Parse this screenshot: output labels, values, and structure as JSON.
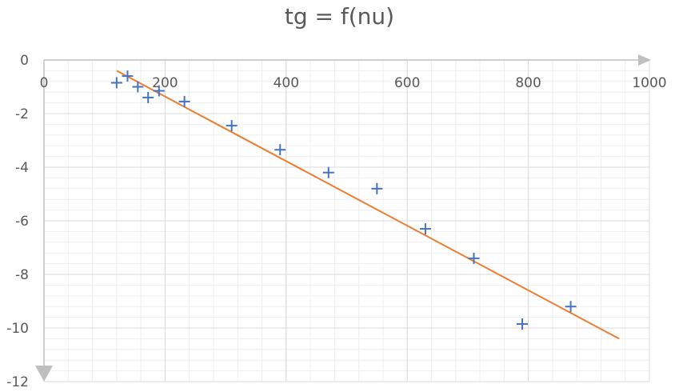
{
  "chart_data": {
    "type": "scatter",
    "title": "tg = f(nu)",
    "xlabel": "",
    "ylabel": "",
    "xlim": [
      0,
      1000
    ],
    "ylim": [
      -12,
      0
    ],
    "x_ticks": [
      "0",
      "200",
      "400",
      "600",
      "800",
      "1000"
    ],
    "y_ticks": [
      "0",
      "-2",
      "-4",
      "-6",
      "-8",
      "-10",
      "-12"
    ],
    "grid": true,
    "legend": "none",
    "series": [
      {
        "marker": "plus",
        "color": "#4472c4",
        "points": [
          {
            "x": 120,
            "y": -0.85
          },
          {
            "x": 138,
            "y": -0.6
          },
          {
            "x": 155,
            "y": -1.0
          },
          {
            "x": 172,
            "y": -1.4
          },
          {
            "x": 190,
            "y": -1.15
          },
          {
            "x": 232,
            "y": -1.55
          },
          {
            "x": 310,
            "y": -2.45
          },
          {
            "x": 390,
            "y": -3.35
          },
          {
            "x": 470,
            "y": -4.2
          },
          {
            "x": 550,
            "y": -4.8
          },
          {
            "x": 630,
            "y": -6.3
          },
          {
            "x": 710,
            "y": -7.4
          },
          {
            "x": 790,
            "y": -9.85
          },
          {
            "x": 870,
            "y": -9.2
          }
        ]
      }
    ],
    "trendline": {
      "type": "linear",
      "color": "#ed7d31",
      "x": [
        120,
        950
      ],
      "y": [
        -0.4,
        -10.4
      ]
    }
  }
}
